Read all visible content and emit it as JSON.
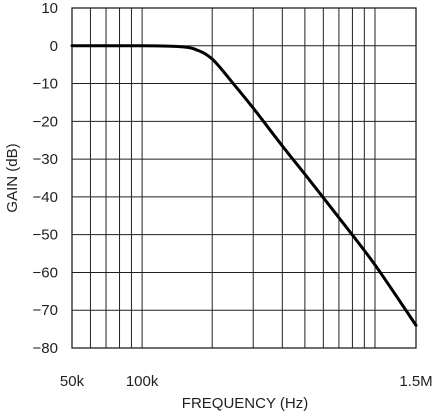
{
  "chart_data": {
    "type": "line",
    "x_scale": "log",
    "xlabel": "FREQUENCY (Hz)",
    "ylabel": "GAIN (dB)",
    "xlim": [
      50000,
      1500000
    ],
    "ylim": [
      -80,
      10
    ],
    "grid": true,
    "y_ticks": [
      10,
      0,
      -10,
      -20,
      -30,
      -40,
      -50,
      -60,
      -70,
      -80
    ],
    "y_tick_labels": [
      "10",
      "0",
      "−10",
      "−20",
      "−30",
      "−40",
      "−50",
      "−60",
      "−70",
      "−80"
    ],
    "x_tick_labels": [
      {
        "value": 50000,
        "label": "50k"
      },
      {
        "value": 100000,
        "label": "100k"
      },
      {
        "value": 1500000,
        "label": "1.5M"
      }
    ],
    "series": [
      {
        "x": [
          50000,
          100000,
          130000,
          150000,
          170000,
          200000,
          250000,
          300000,
          400000,
          500000,
          700000,
          1000000,
          1500000
        ],
        "y": [
          0,
          0,
          -0.1,
          -0.3,
          -1,
          -3.5,
          -10.5,
          -16.5,
          -26.5,
          -34,
          -45.5,
          -58,
          -74
        ]
      }
    ]
  }
}
